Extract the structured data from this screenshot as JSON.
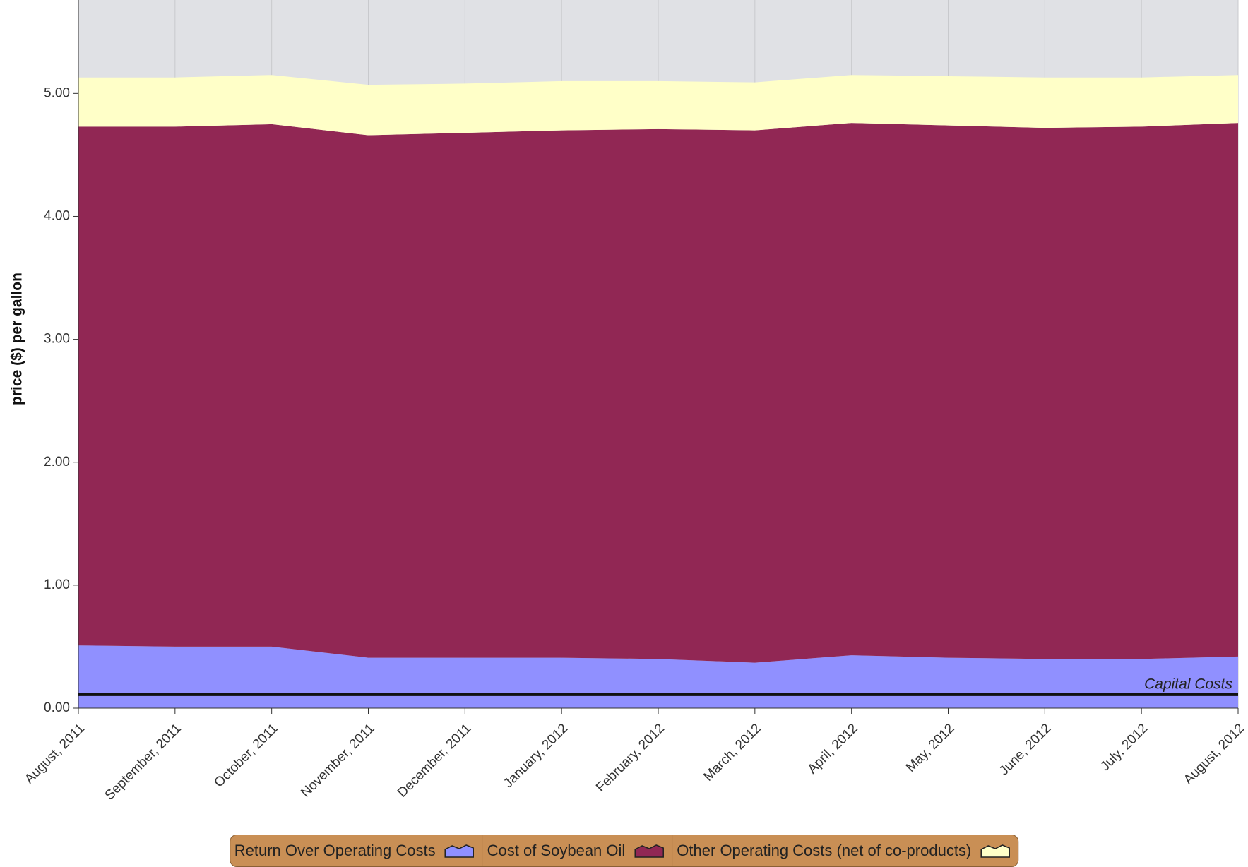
{
  "chart_data": {
    "type": "stacked-area",
    "y_label": "price ($) per gallon",
    "categories": [
      "August, 2011",
      "September, 2011",
      "October, 2011",
      "November, 2011",
      "December, 2011",
      "January, 2012",
      "February, 2012",
      "March, 2012",
      "April, 2012",
      "May, 2012",
      "June, 2012",
      "July, 2012",
      "August, 2012"
    ],
    "series": [
      {
        "name": "Return Over Operating Costs",
        "color": "#9090ff",
        "values": [
          0.51,
          0.5,
          0.5,
          0.41,
          0.41,
          0.41,
          0.4,
          0.37,
          0.43,
          0.41,
          0.4,
          0.4,
          0.42
        ]
      },
      {
        "name": "Cost of Soybean Oil",
        "color": "#912754",
        "values": [
          4.22,
          4.23,
          4.25,
          4.25,
          4.27,
          4.29,
          4.31,
          4.33,
          4.33,
          4.33,
          4.32,
          4.33,
          4.34
        ]
      },
      {
        "name": "Other Operating Costs (net of co-products)",
        "color": "#ffffc8",
        "values": [
          0.4,
          0.4,
          0.4,
          0.41,
          0.4,
          0.4,
          0.39,
          0.39,
          0.39,
          0.4,
          0.41,
          0.4,
          0.39
        ]
      }
    ],
    "annotation": {
      "label": "Capital Costs",
      "value": 0.11
    },
    "ylim": [
      0,
      5.76
    ],
    "yticks": [
      {
        "value": 0,
        "label": "0.00"
      },
      {
        "value": 1,
        "label": "1.00"
      },
      {
        "value": 2,
        "label": "2.00"
      },
      {
        "value": 3,
        "label": "3.00"
      },
      {
        "value": 4,
        "label": "4.00"
      },
      {
        "value": 5,
        "label": "5.00"
      }
    ],
    "grid": true
  }
}
